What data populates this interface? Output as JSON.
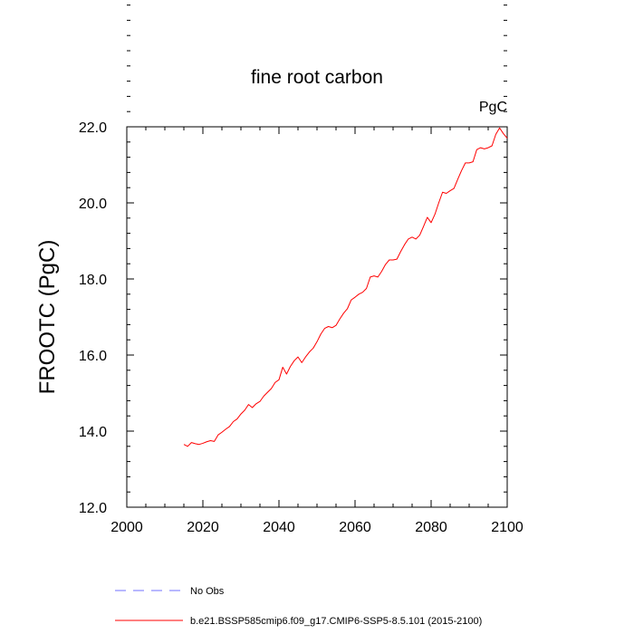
{
  "chart_data": {
    "type": "line",
    "title": "fine root carbon",
    "units_label": "PgC",
    "xlabel": "",
    "ylabel": "FROOTC  (PgC)",
    "xlim": [
      2000,
      2100
    ],
    "ylim": [
      12.0,
      22.0
    ],
    "x_ticks": [
      2000,
      2020,
      2040,
      2060,
      2080,
      2100
    ],
    "x_tick_labels": [
      "2000",
      "2020",
      "2040",
      "2060",
      "2080",
      "2100"
    ],
    "y_ticks": [
      12.0,
      14.0,
      16.0,
      18.0,
      20.0,
      22.0
    ],
    "y_tick_labels": [
      "12.0",
      "14.0",
      "16.0",
      "18.0",
      "20.0",
      "22.0"
    ],
    "grid": false,
    "legend_position": "bottom",
    "legend": [
      {
        "label": "No Obs",
        "color": "#7070ff",
        "style": "dashed"
      },
      {
        "label": "b.e21.BSSP585cmip6.f09_g17.CMIP6-SSP5-8.5.101 (2015-2100)",
        "color": "#ff0000",
        "style": "solid"
      }
    ],
    "series": [
      {
        "name": "b.e21.BSSP585cmip6.f09_g17.CMIP6-SSP5-8.5.101 (2015-2100)",
        "color": "#ff0000",
        "x": [
          2015,
          2016,
          2017,
          2018,
          2019,
          2020,
          2021,
          2022,
          2023,
          2024,
          2025,
          2026,
          2027,
          2028,
          2029,
          2030,
          2031,
          2032,
          2033,
          2034,
          2035,
          2036,
          2037,
          2038,
          2039,
          2040,
          2041,
          2042,
          2043,
          2044,
          2045,
          2046,
          2047,
          2048,
          2049,
          2050,
          2051,
          2052,
          2053,
          2054,
          2055,
          2056,
          2057,
          2058,
          2059,
          2060,
          2061,
          2062,
          2063,
          2064,
          2065,
          2066,
          2067,
          2068,
          2069,
          2070,
          2071,
          2072,
          2073,
          2074,
          2075,
          2076,
          2077,
          2078,
          2079,
          2080,
          2081,
          2082,
          2083,
          2084,
          2085,
          2086,
          2087,
          2088,
          2089,
          2090,
          2091,
          2092,
          2093,
          2094,
          2095,
          2096,
          2097,
          2098,
          2099,
          2100
        ],
        "y": [
          13.65,
          13.6,
          13.7,
          13.67,
          13.65,
          13.68,
          13.72,
          13.75,
          13.73,
          13.9,
          13.97,
          14.05,
          14.12,
          14.25,
          14.32,
          14.45,
          14.55,
          14.7,
          14.62,
          14.72,
          14.78,
          14.92,
          15.02,
          15.12,
          15.28,
          15.35,
          15.68,
          15.5,
          15.7,
          15.85,
          15.95,
          15.8,
          15.95,
          16.08,
          16.18,
          16.35,
          16.55,
          16.7,
          16.75,
          16.72,
          16.78,
          16.95,
          17.1,
          17.22,
          17.45,
          17.52,
          17.6,
          17.65,
          17.75,
          18.05,
          18.08,
          18.05,
          18.2,
          18.38,
          18.5,
          18.5,
          18.52,
          18.72,
          18.9,
          19.05,
          19.1,
          19.05,
          19.15,
          19.38,
          19.62,
          19.48,
          19.7,
          20.0,
          20.28,
          20.25,
          20.32,
          20.38,
          20.62,
          20.85,
          21.05,
          21.05,
          21.08,
          21.4,
          21.45,
          21.42,
          21.45,
          21.5,
          21.8,
          21.97,
          21.82,
          21.7
        ]
      }
    ]
  }
}
